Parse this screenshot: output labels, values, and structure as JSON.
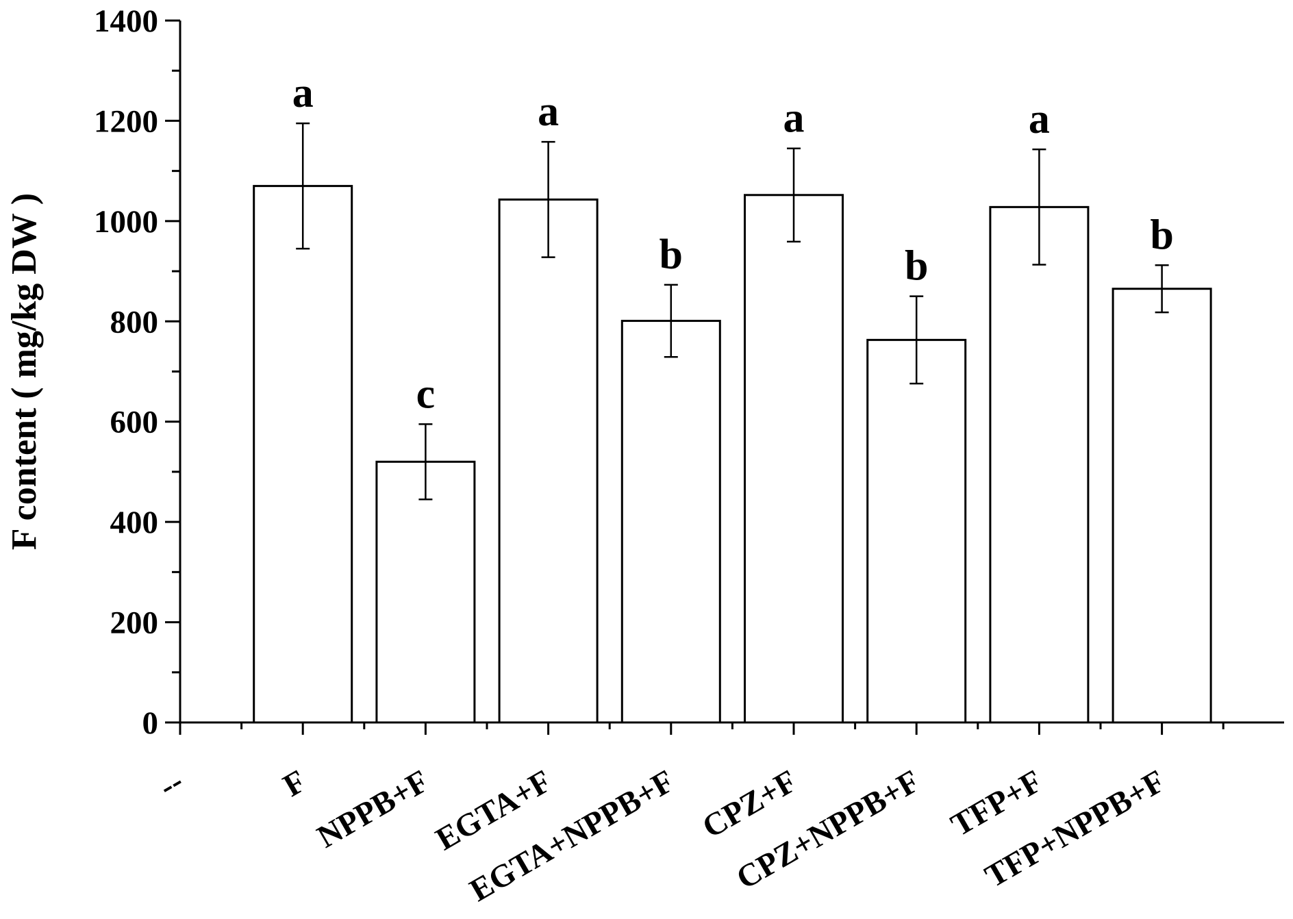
{
  "chart_data": {
    "type": "bar",
    "title": "",
    "xlabel": "",
    "ylabel": "F content ( mg/kg DW )",
    "ylim": [
      0,
      1400
    ],
    "yticks": [
      0,
      200,
      400,
      600,
      800,
      1000,
      1200,
      1400
    ],
    "categories": [
      "--",
      "F",
      "NPPB+F",
      "EGTA+F",
      "EGTA+NPPB+F",
      "CPZ+F",
      "CPZ+NPPB+F",
      "TFP+F",
      "TFP+NPPB+F"
    ],
    "values": [
      null,
      1070,
      520,
      1043,
      801,
      1052,
      763,
      1028,
      865
    ],
    "errors": [
      null,
      125,
      75,
      115,
      72,
      93,
      87,
      115,
      47
    ],
    "significance": [
      "",
      "a",
      "c",
      "a",
      "b",
      "a",
      "b",
      "a",
      "b"
    ],
    "grid": false,
    "legend": "none",
    "bar_fill": "#ffffff",
    "bar_stroke": "#000000"
  }
}
